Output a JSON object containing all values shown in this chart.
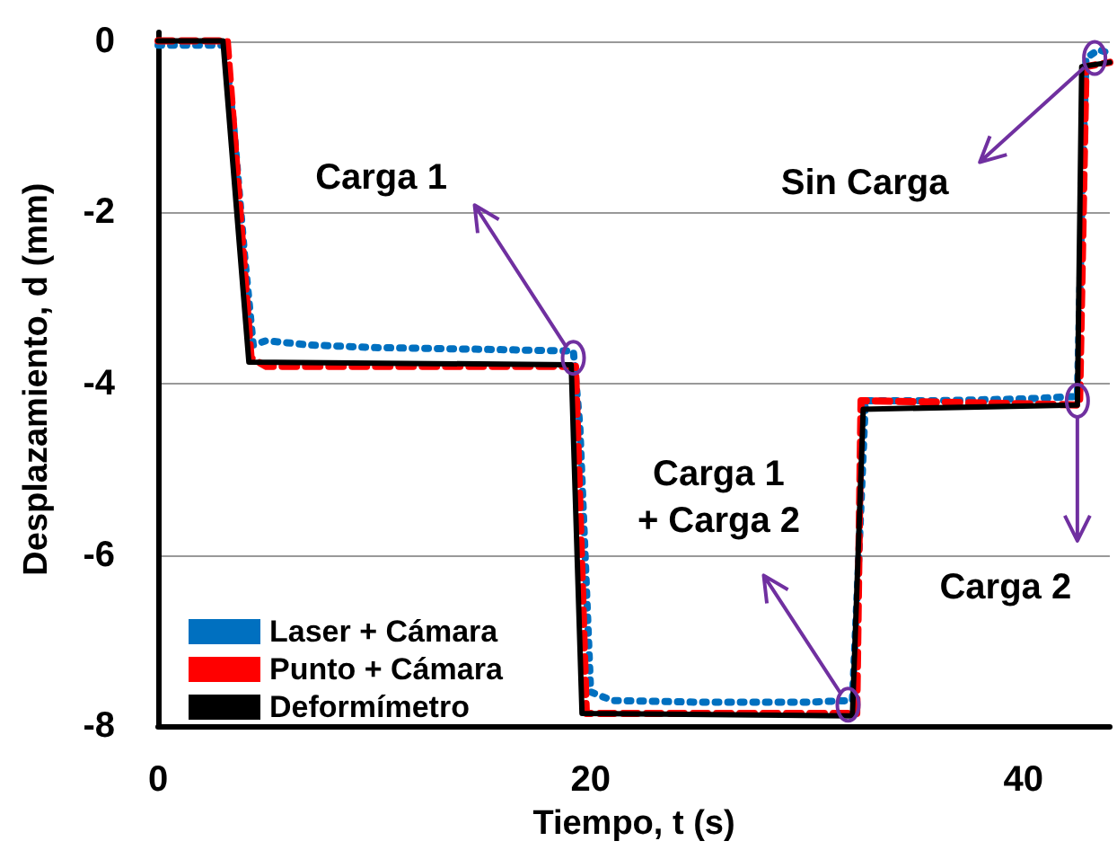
{
  "chart_data": {
    "type": "line",
    "xlabel": "Tiempo, t (s)",
    "ylabel": "Desplazamiento, d (mm)",
    "xlim": [
      0,
      44
    ],
    "xticks": [
      0,
      20,
      40
    ],
    "ylim": [
      -8,
      0.1
    ],
    "yticks": [
      0,
      -2,
      -4,
      -6,
      -8
    ],
    "grid": "y",
    "legend": "bottom left",
    "marker": "none",
    "series": [
      {
        "name": "Laser + Cámara",
        "color": "#0070c0",
        "line_style": "dotted",
        "x": [
          0,
          3.1,
          3.5,
          4.0,
          4.4,
          5,
          7,
          10,
          15,
          19.2,
          19.5,
          20,
          21,
          25,
          30,
          32.1,
          32.4,
          32.7,
          36,
          40,
          42.5,
          42.7,
          42.9,
          43.5,
          44
        ],
        "values": [
          -0.05,
          -0.05,
          -1.0,
          -2.5,
          -3.55,
          -3.5,
          -3.55,
          -3.58,
          -3.6,
          -3.62,
          -4.5,
          -7.6,
          -7.7,
          -7.72,
          -7.72,
          -7.7,
          -6,
          -4.2,
          -4.2,
          -4.18,
          -4.15,
          -2,
          -0.2,
          -0.1,
          -0.15
        ]
      },
      {
        "name": "Punto + Cámara",
        "color": "#ff0000",
        "line_style": "dashed",
        "x": [
          0,
          3.2,
          4.3,
          5,
          19.3,
          19.8,
          32.3,
          32.5,
          42.6,
          42.9,
          44
        ],
        "values": [
          0,
          0,
          -3.7,
          -3.8,
          -3.8,
          -7.85,
          -7.85,
          -4.2,
          -4.25,
          -0.3,
          -0.25
        ]
      },
      {
        "name": "Deformímetro",
        "color": "#000000",
        "line_style": "solid",
        "x": [
          0,
          3.0,
          4.2,
          19.1,
          19.6,
          32.1,
          32.6,
          42.5,
          42.7,
          44
        ],
        "values": [
          0,
          0,
          -3.75,
          -3.78,
          -7.85,
          -7.88,
          -4.3,
          -4.25,
          -0.3,
          -0.25
        ]
      }
    ],
    "annotations": [
      {
        "text": "Carga 1",
        "x": 19.2,
        "y": -3.7
      },
      {
        "text": "Sin Carga",
        "x": 43.3,
        "y": -0.2
      },
      {
        "text": "Carga 1\n+ Carga 2",
        "x": 31.9,
        "y": -7.75
      },
      {
        "text": "Carga 2",
        "x": 42.5,
        "y": -4.2
      }
    ]
  }
}
